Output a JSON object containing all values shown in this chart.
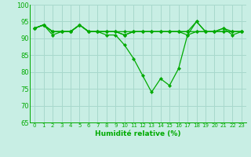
{
  "xlabel": "Humidité relative (%)",
  "background_color": "#c8eee4",
  "grid_color": "#a8d8cc",
  "line_color": "#00aa00",
  "ylim": [
    65,
    100
  ],
  "xlim": [
    -0.5,
    23.5
  ],
  "yticks": [
    65,
    70,
    75,
    80,
    85,
    90,
    95,
    100
  ],
  "xticks": [
    0,
    1,
    2,
    3,
    4,
    5,
    6,
    7,
    8,
    9,
    10,
    11,
    12,
    13,
    14,
    15,
    16,
    17,
    18,
    19,
    20,
    21,
    22,
    23
  ],
  "series": [
    [
      93,
      94,
      92,
      92,
      92,
      94,
      92,
      92,
      92,
      92,
      91,
      92,
      92,
      92,
      92,
      92,
      92,
      92,
      92,
      92,
      92,
      92,
      92,
      92
    ],
    [
      93,
      94,
      92,
      92,
      92,
      94,
      92,
      92,
      92,
      92,
      92,
      92,
      92,
      92,
      92,
      92,
      92,
      92,
      95,
      92,
      92,
      93,
      92,
      92
    ],
    [
      93,
      94,
      92,
      92,
      92,
      94,
      92,
      92,
      92,
      92,
      91,
      92,
      92,
      92,
      92,
      92,
      92,
      91,
      92,
      92,
      92,
      92,
      92,
      92
    ],
    [
      93,
      94,
      91,
      92,
      92,
      94,
      92,
      92,
      91,
      91,
      88,
      84,
      79,
      74,
      78,
      76,
      81,
      91,
      95,
      92,
      92,
      93,
      91,
      92
    ]
  ],
  "xlabel_fontsize": 6.5,
  "tick_fontsize": 5.0,
  "ytick_fontsize": 6.0,
  "linewidth": 0.9,
  "markersize": 2.2
}
